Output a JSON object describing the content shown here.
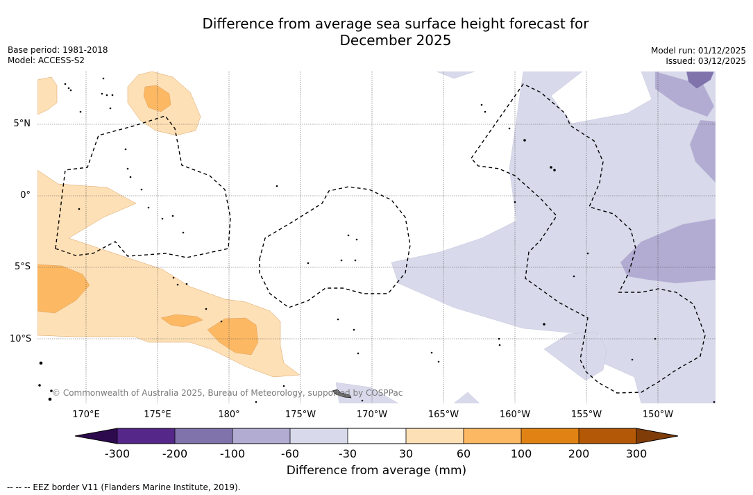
{
  "title": {
    "line1": "Difference from average sea surface height forecast for",
    "line2": "December 2025"
  },
  "meta": {
    "base_period": "Base period: 1981-2018",
    "model": "Model: ACCESS-S2",
    "model_run": "Model run: 01/12/2025",
    "issued": "Issued: 03/12/2025"
  },
  "axes": {
    "lat_labels": [
      "5°N",
      "0°",
      "5°S",
      "10°S"
    ],
    "lon_labels": [
      "170°E",
      "175°E",
      "180°",
      "175°W",
      "170°W",
      "165°W",
      "160°W",
      "155°W",
      "150°W"
    ]
  },
  "copyright": "© Commonwealth of Australia 2025, Bureau of Meteorology, supported by COSPPac",
  "colorbar": {
    "title": "Difference from average (mm)",
    "tick_labels": [
      "-300",
      "-200",
      "-100",
      "-60",
      "-30",
      "30",
      "60",
      "100",
      "200",
      "300"
    ],
    "colors": {
      "below_min": "#2d0a4e",
      "n300_n200": "#542788",
      "n200_n100": "#8073ac",
      "n100_n60": "#b2abd2",
      "n60_n30": "#d8daeb",
      "n30_30": "#ffffff",
      "p30_60": "#fee0b6",
      "p60_100": "#fdb863",
      "p100_200": "#e08214",
      "p200_300": "#b35806",
      "above_max": "#7f3b08"
    }
  },
  "legend_note": "--  --  -- EEZ border V11 (Flanders Marine Institute, 2019)."
}
